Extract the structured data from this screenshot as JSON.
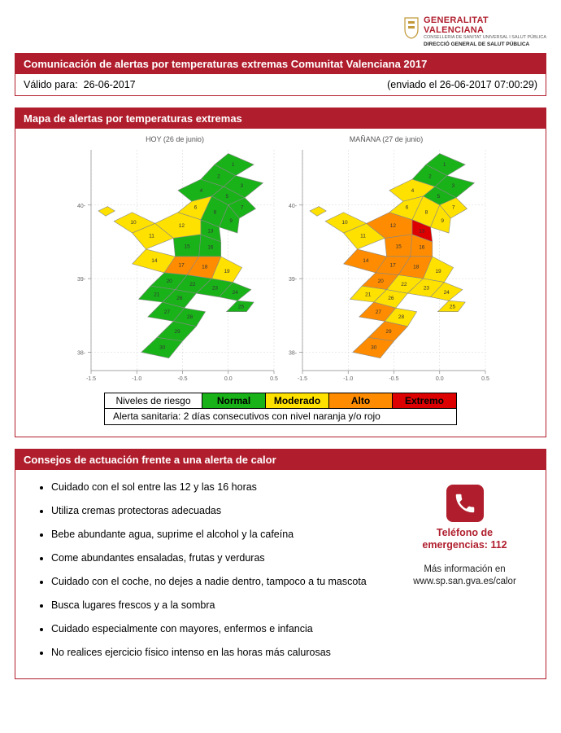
{
  "logo": {
    "title_line1": "GENERALITAT",
    "title_line2": "VALENCIANA",
    "sub1": "CONSELLERIA DE SANITAT UNIVERSAL I SALUT PÚBLICA",
    "sub2": "DIRECCIÓ GENERAL DE SALUT PÚBLICA",
    "crest_color": "#c29a3a"
  },
  "colors": {
    "panel_red": "#b01e2d",
    "white": "#ffffff",
    "text": "#000000",
    "normal": "#19b319",
    "moderado": "#ffe100",
    "alto": "#ff8c00",
    "extremo": "#dc0000",
    "grid": "#d5d5d5",
    "axis": "#888888"
  },
  "panel1": {
    "title": "Comunicación de alertas por temperaturas extremas Comunitat Valenciana 2017",
    "valid_label": "Válido para:",
    "valid_date": "26-06-2017",
    "sent_label": "(enviado el 26-06-2017 07:00:29)"
  },
  "panel2": {
    "title": "Mapa de alertas por temperaturas extremas"
  },
  "maps": {
    "xmin": -1.5,
    "xmax": 0.5,
    "ymin": 37.75,
    "ymax": 40.75,
    "xticks": [
      -1.5,
      -1.0,
      -0.5,
      0.0,
      0.5
    ],
    "yticks": [
      38.0,
      39.0,
      40.0
    ],
    "xticklabels": [
      "-1.5",
      "-1.0",
      "-0.5",
      "0.0",
      "0.5"
    ],
    "yticklabels": [
      "38-",
      "39-",
      "40-"
    ],
    "today_title": "HOY (26 de junio)",
    "tomorrow_title": "MAÑANA (27 de junio)",
    "regions": [
      {
        "id": 1,
        "poly": [
          [
            0.0,
            40.7
          ],
          [
            -0.15,
            40.55
          ],
          [
            0.08,
            40.4
          ],
          [
            0.28,
            40.55
          ]
        ]
      },
      {
        "id": 2,
        "poly": [
          [
            -0.15,
            40.55
          ],
          [
            -0.3,
            40.35
          ],
          [
            -0.05,
            40.25
          ],
          [
            0.08,
            40.4
          ]
        ]
      },
      {
        "id": 3,
        "poly": [
          [
            0.08,
            40.4
          ],
          [
            -0.05,
            40.25
          ],
          [
            0.18,
            40.1
          ],
          [
            0.38,
            40.3
          ]
        ]
      },
      {
        "id": 4,
        "poly": [
          [
            -0.3,
            40.35
          ],
          [
            -0.55,
            40.2
          ],
          [
            -0.4,
            40.05
          ],
          [
            -0.18,
            40.12
          ],
          [
            -0.05,
            40.25
          ]
        ]
      },
      {
        "id": 5,
        "poly": [
          [
            -0.05,
            40.25
          ],
          [
            -0.18,
            40.12
          ],
          [
            0.0,
            40.0
          ],
          [
            0.18,
            40.1
          ]
        ]
      },
      {
        "id": 6,
        "poly": [
          [
            -0.4,
            40.05
          ],
          [
            -0.55,
            39.9
          ],
          [
            -0.3,
            39.8
          ],
          [
            -0.18,
            40.12
          ]
        ]
      },
      {
        "id": 7,
        "poly": [
          [
            0.18,
            40.1
          ],
          [
            0.0,
            40.0
          ],
          [
            0.12,
            39.82
          ],
          [
            0.3,
            39.95
          ]
        ]
      },
      {
        "id": 8,
        "poly": [
          [
            -0.18,
            40.12
          ],
          [
            -0.3,
            39.8
          ],
          [
            -0.1,
            39.7
          ],
          [
            0.0,
            40.0
          ]
        ]
      },
      {
        "id": 9,
        "poly": [
          [
            0.0,
            40.0
          ],
          [
            -0.1,
            39.7
          ],
          [
            0.1,
            39.62
          ],
          [
            0.12,
            39.82
          ]
        ]
      },
      {
        "id": 10,
        "poly": [
          [
            -1.05,
            39.9
          ],
          [
            -1.25,
            39.78
          ],
          [
            -1.05,
            39.62
          ],
          [
            -0.8,
            39.75
          ]
        ],
        "island": true
      },
      {
        "id": 31,
        "poly": [
          [
            -1.32,
            39.98
          ],
          [
            -1.42,
            39.92
          ],
          [
            -1.34,
            39.85
          ],
          [
            -1.24,
            39.92
          ]
        ],
        "island": true
      },
      {
        "id": 11,
        "poly": [
          [
            -0.8,
            39.75
          ],
          [
            -1.05,
            39.62
          ],
          [
            -0.9,
            39.4
          ],
          [
            -0.6,
            39.55
          ]
        ]
      },
      {
        "id": 12,
        "poly": [
          [
            -0.55,
            39.9
          ],
          [
            -0.8,
            39.75
          ],
          [
            -0.6,
            39.55
          ],
          [
            -0.3,
            39.6
          ],
          [
            -0.3,
            39.8
          ]
        ]
      },
      {
        "id": 13,
        "poly": [
          [
            -0.3,
            39.8
          ],
          [
            -0.3,
            39.6
          ],
          [
            -0.08,
            39.5
          ],
          [
            -0.1,
            39.7
          ]
        ]
      },
      {
        "id": 14,
        "poly": [
          [
            -0.9,
            39.4
          ],
          [
            -1.05,
            39.2
          ],
          [
            -0.7,
            39.08
          ],
          [
            -0.58,
            39.3
          ]
        ]
      },
      {
        "id": 15,
        "poly": [
          [
            -0.6,
            39.55
          ],
          [
            -0.58,
            39.3
          ],
          [
            -0.32,
            39.3
          ],
          [
            -0.3,
            39.6
          ]
        ]
      },
      {
        "id": 16,
        "poly": [
          [
            -0.3,
            39.6
          ],
          [
            -0.32,
            39.3
          ],
          [
            -0.08,
            39.3
          ],
          [
            -0.08,
            39.5
          ]
        ]
      },
      {
        "id": 17,
        "poly": [
          [
            -0.58,
            39.3
          ],
          [
            -0.7,
            39.08
          ],
          [
            -0.45,
            39.05
          ],
          [
            -0.32,
            39.3
          ]
        ]
      },
      {
        "id": 18,
        "poly": [
          [
            -0.32,
            39.3
          ],
          [
            -0.45,
            39.05
          ],
          [
            -0.18,
            39.0
          ],
          [
            -0.08,
            39.3
          ]
        ]
      },
      {
        "id": 19,
        "poly": [
          [
            -0.08,
            39.3
          ],
          [
            -0.18,
            39.0
          ],
          [
            0.05,
            38.95
          ],
          [
            0.15,
            39.15
          ]
        ]
      },
      {
        "id": 20,
        "poly": [
          [
            -0.7,
            39.08
          ],
          [
            -0.85,
            38.9
          ],
          [
            -0.58,
            38.85
          ],
          [
            -0.45,
            39.05
          ]
        ]
      },
      {
        "id": 21,
        "poly": [
          [
            -0.85,
            38.9
          ],
          [
            -0.98,
            38.72
          ],
          [
            -0.72,
            38.68
          ],
          [
            -0.58,
            38.85
          ]
        ]
      },
      {
        "id": 22,
        "poly": [
          [
            -0.45,
            39.05
          ],
          [
            -0.58,
            38.85
          ],
          [
            -0.35,
            38.8
          ],
          [
            -0.18,
            39.0
          ]
        ]
      },
      {
        "id": 23,
        "poly": [
          [
            -0.18,
            39.0
          ],
          [
            -0.35,
            38.8
          ],
          [
            -0.1,
            38.75
          ],
          [
            0.05,
            38.95
          ]
        ]
      },
      {
        "id": 24,
        "poly": [
          [
            0.05,
            38.95
          ],
          [
            -0.1,
            38.75
          ],
          [
            0.1,
            38.7
          ],
          [
            0.25,
            38.85
          ]
        ]
      },
      {
        "id": 25,
        "poly": [
          [
            0.1,
            38.7
          ],
          [
            -0.02,
            38.55
          ],
          [
            0.2,
            38.55
          ],
          [
            0.28,
            38.68
          ]
        ]
      },
      {
        "id": 26,
        "poly": [
          [
            -0.58,
            38.85
          ],
          [
            -0.72,
            38.68
          ],
          [
            -0.48,
            38.6
          ],
          [
            -0.35,
            38.8
          ]
        ]
      },
      {
        "id": 27,
        "poly": [
          [
            -0.72,
            38.68
          ],
          [
            -0.88,
            38.48
          ],
          [
            -0.6,
            38.42
          ],
          [
            -0.48,
            38.6
          ]
        ]
      },
      {
        "id": 28,
        "poly": [
          [
            -0.48,
            38.6
          ],
          [
            -0.6,
            38.42
          ],
          [
            -0.35,
            38.35
          ],
          [
            -0.25,
            38.55
          ]
        ]
      },
      {
        "id": 29,
        "poly": [
          [
            -0.6,
            38.42
          ],
          [
            -0.78,
            38.2
          ],
          [
            -0.5,
            38.15
          ],
          [
            -0.35,
            38.35
          ]
        ]
      },
      {
        "id": 30,
        "poly": [
          [
            -0.78,
            38.2
          ],
          [
            -0.95,
            38.0
          ],
          [
            -0.65,
            37.92
          ],
          [
            -0.5,
            38.15
          ]
        ]
      }
    ],
    "today_levels": {
      "1": "normal",
      "2": "normal",
      "3": "normal",
      "4": "normal",
      "5": "normal",
      "6": "moderado",
      "7": "normal",
      "8": "normal",
      "9": "normal",
      "10": "moderado",
      "31": "moderado",
      "11": "moderado",
      "12": "moderado",
      "13": "normal",
      "14": "moderado",
      "15": "normal",
      "16": "normal",
      "17": "alto",
      "18": "alto",
      "19": "moderado",
      "20": "normal",
      "21": "normal",
      "22": "normal",
      "23": "normal",
      "24": "normal",
      "25": "normal",
      "26": "normal",
      "27": "normal",
      "28": "normal",
      "29": "normal",
      "30": "normal"
    },
    "tomorrow_levels": {
      "1": "normal",
      "2": "normal",
      "3": "normal",
      "4": "moderado",
      "5": "normal",
      "6": "moderado",
      "7": "moderado",
      "8": "moderado",
      "9": "moderado",
      "10": "moderado",
      "31": "moderado",
      "11": "moderado",
      "12": "alto",
      "13": "extremo",
      "14": "alto",
      "15": "alto",
      "16": "alto",
      "17": "alto",
      "18": "alto",
      "19": "moderado",
      "20": "alto",
      "21": "moderado",
      "22": "moderado",
      "23": "moderado",
      "24": "moderado",
      "25": "moderado",
      "26": "moderado",
      "27": "alto",
      "28": "moderado",
      "29": "alto",
      "30": "alto"
    }
  },
  "legend": {
    "header": "Niveles de riesgo",
    "levels": [
      {
        "label": "Normal",
        "key": "normal"
      },
      {
        "label": "Moderado",
        "key": "moderado"
      },
      {
        "label": "Alto",
        "key": "alto"
      },
      {
        "label": "Extremo",
        "key": "extremo"
      }
    ],
    "note": "Alerta sanitaria: 2 días consecutivos con nivel naranja y/o rojo"
  },
  "panel3": {
    "title": "Consejos de actuación frente a una alerta de calor",
    "tips": [
      "Cuidado con el sol entre las 12 y las 16 horas",
      "Utiliza cremas protectoras adecuadas",
      "Bebe abundante agua, suprime el alcohol y la cafeína",
      "Come abundantes ensaladas, frutas y verduras",
      "Cuidado con el coche, no dejes a nadie dentro, tampoco a tu mascota",
      "Busca lugares frescos y a la sombra",
      "Cuidado especialmente con mayores, enfermos e infancia",
      "No realices ejercicio físico intenso en las horas más calurosas"
    ],
    "emerg_line1": "Teléfono de",
    "emerg_line2": "emergencias: 112",
    "info_line1": "Más información en",
    "info_line2": "www.sp.san.gva.es/calor"
  }
}
